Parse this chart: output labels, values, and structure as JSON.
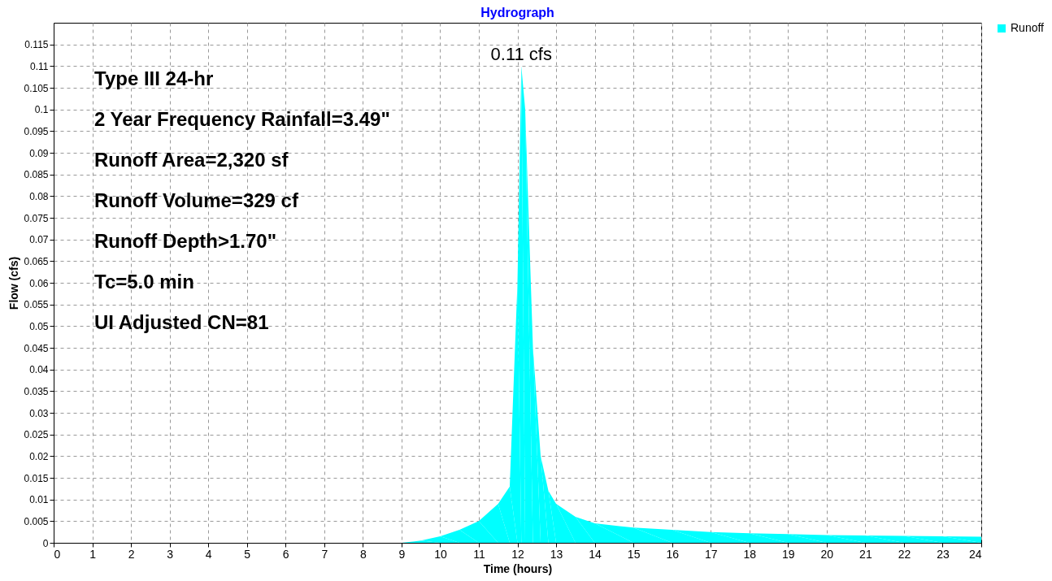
{
  "chart_data": {
    "type": "area",
    "title": "Hydrograph",
    "xlabel": "Time  (hours)",
    "ylabel": "Flow  (cfs)",
    "x": [
      0,
      9,
      9.5,
      10,
      10.5,
      11,
      11.5,
      11.8,
      12.0,
      12.1,
      12.2,
      12.4,
      12.6,
      12.8,
      13,
      13.5,
      14,
      15,
      16,
      17,
      18,
      19,
      20,
      21,
      22,
      23,
      24
    ],
    "series": [
      {
        "name": "Runoff",
        "color": "#00ffff",
        "values": [
          0,
          0,
          0.0005,
          0.0015,
          0.003,
          0.005,
          0.009,
          0.013,
          0.06,
          0.11,
          0.1,
          0.045,
          0.02,
          0.012,
          0.009,
          0.006,
          0.0045,
          0.0035,
          0.003,
          0.0025,
          0.0022,
          0.002,
          0.0018,
          0.0017,
          0.0016,
          0.0015,
          0.0014
        ]
      }
    ],
    "xlim": [
      0,
      24
    ],
    "xticks": [
      0,
      1,
      2,
      3,
      4,
      5,
      6,
      7,
      8,
      9,
      10,
      11,
      12,
      13,
      14,
      15,
      16,
      17,
      18,
      19,
      20,
      21,
      22,
      23,
      24
    ],
    "ylim": [
      0,
      0.12
    ],
    "yticks": [
      0,
      0.005,
      0.01,
      0.015,
      0.02,
      0.025,
      0.03,
      0.035,
      0.04,
      0.045,
      0.05,
      0.055,
      0.06,
      0.065,
      0.07,
      0.075,
      0.08,
      0.085,
      0.09,
      0.095,
      0.1,
      0.105,
      0.11,
      0.115
    ],
    "annotations": [
      "Type III 24-hr",
      "2 Year Frequency Rainfall=3.49\"",
      "Runoff Area=2,320 sf",
      "Runoff Volume=329 cf",
      "Runoff Depth>1.70\"",
      "Tc=5.0 min",
      "UI Adjusted CN=81",
      {
        "text": "0.11 cfs",
        "x": 12.1,
        "y": 0.11
      }
    ],
    "grid": true,
    "legend": "top right"
  }
}
